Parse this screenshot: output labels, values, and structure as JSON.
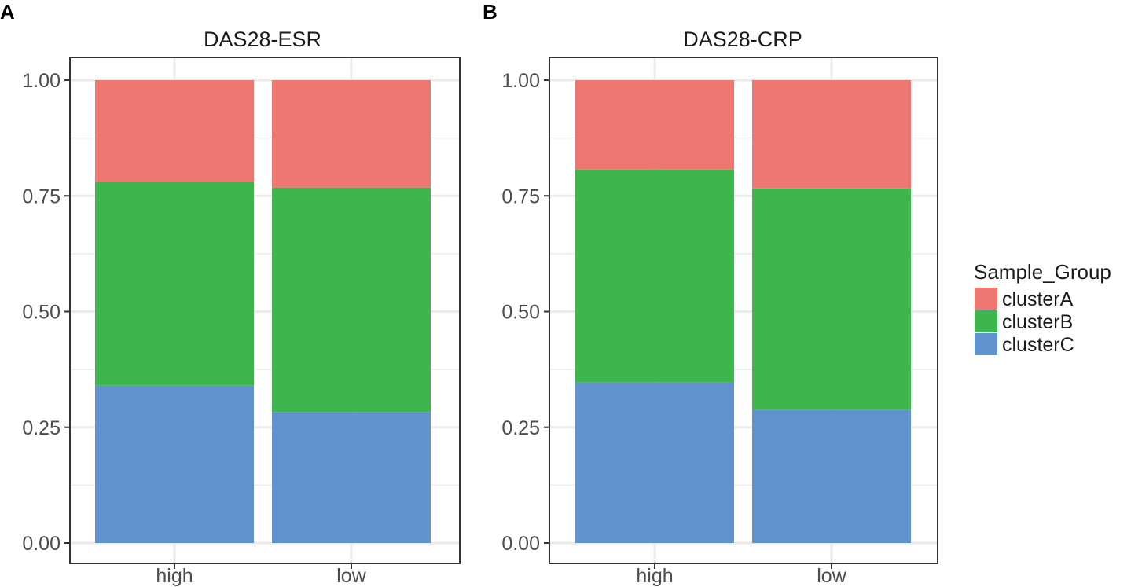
{
  "chart_data": [
    {
      "panel": "A",
      "type": "bar",
      "stacked": true,
      "title": "DAS28-ESR",
      "categories": [
        "high",
        "low"
      ],
      "ylim": [
        0,
        1
      ],
      "yticks": [
        "0.00",
        "0.25",
        "0.50",
        "0.75",
        "1.00"
      ],
      "series": [
        {
          "name": "clusterC",
          "values": [
            0.34,
            0.283
          ]
        },
        {
          "name": "clusterB",
          "values": [
            0.44,
            0.485
          ]
        },
        {
          "name": "clusterA",
          "values": [
            0.22,
            0.232
          ]
        }
      ]
    },
    {
      "panel": "B",
      "type": "bar",
      "stacked": true,
      "title": "DAS28-CRP",
      "categories": [
        "high",
        "low"
      ],
      "ylim": [
        0,
        1
      ],
      "yticks": [
        "0.00",
        "0.25",
        "0.50",
        "0.75",
        "1.00"
      ],
      "series": [
        {
          "name": "clusterC",
          "values": [
            0.347,
            0.288
          ]
        },
        {
          "name": "clusterB",
          "values": [
            0.46,
            0.478
          ]
        },
        {
          "name": "clusterA",
          "values": [
            0.193,
            0.234
          ]
        }
      ]
    }
  ],
  "legend": {
    "title": "Sample_Group",
    "items": [
      {
        "label": "clusterA",
        "color": "#EF7771"
      },
      {
        "label": "clusterB",
        "color": "#3FB54E"
      },
      {
        "label": "clusterC",
        "color": "#6092CE"
      }
    ]
  }
}
